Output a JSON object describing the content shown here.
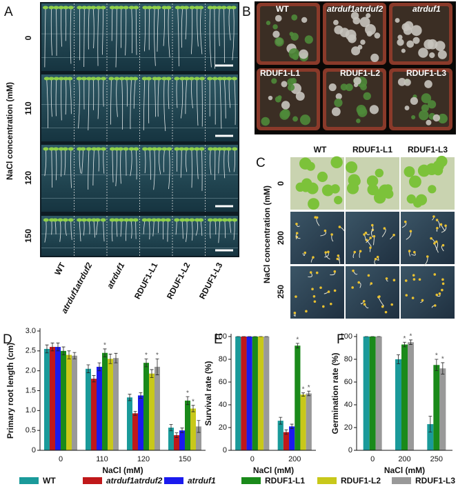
{
  "panels": {
    "A": {
      "label": "A",
      "y_label": "NaCl concentration (mM)",
      "rows": [
        "0",
        "110",
        "120",
        "150"
      ],
      "columns": [
        "WT",
        "atrduf1atrduf2",
        "atrduf1",
        "RDUF1-L1",
        "RDUF1-L2",
        "RDUF1-L3"
      ]
    },
    "B": {
      "label": "B",
      "pots": [
        "WT",
        "atrduf1atrduf2",
        "atrduf1",
        "RDUF1-L1",
        "RDUF1-L2",
        "RDUF1-L3"
      ]
    },
    "C": {
      "label": "C",
      "y_label": "NaCl concentration (mM)",
      "rows": [
        "0",
        "200",
        "250"
      ],
      "columns": [
        "WT",
        "RDUF1-L1",
        "RDUF1-L3"
      ]
    }
  },
  "chart_data": [
    {
      "type": "bar",
      "panel_label": "D",
      "y_label": "Primary root length (cm)",
      "x_label": "NaCl (mM)",
      "categories": [
        "0",
        "110",
        "120",
        "150"
      ],
      "ylim": [
        0,
        3
      ],
      "yticks": [
        0,
        0.5,
        {
          "value": 1,
          "label": "1.0"
        },
        1.5,
        {
          "value": 2,
          "label": "2.0"
        },
        2.5,
        {
          "value": 3,
          "label": "3.0"
        }
      ],
      "series": [
        {
          "name": "WT",
          "color": "#1a9a9a",
          "italic": false,
          "values": [
            2.55,
            2.05,
            1.33,
            0.57
          ],
          "errors": [
            0.1,
            0.1,
            0.08,
            0.08
          ],
          "significance": [
            null,
            null,
            null,
            null
          ]
        },
        {
          "name": "atrduf1atrduf2",
          "color": "#c0181a",
          "italic": true,
          "values": [
            2.6,
            1.8,
            0.93,
            0.38
          ],
          "errors": [
            0.1,
            0.08,
            0.05,
            0.06
          ],
          "significance": [
            null,
            null,
            null,
            null
          ]
        },
        {
          "name": "atrduf1",
          "color": "#1a1aee",
          "italic": true,
          "values": [
            2.6,
            2.1,
            1.38,
            0.5
          ],
          "errors": [
            0.1,
            0.1,
            0.07,
            0.06
          ],
          "significance": [
            null,
            null,
            null,
            null
          ]
        },
        {
          "name": "RDUF1-L1",
          "color": "#1a8a1a",
          "italic": false,
          "values": [
            2.5,
            2.45,
            2.2,
            1.25
          ],
          "errors": [
            0.1,
            0.1,
            0.1,
            0.1
          ],
          "significance": [
            null,
            "*",
            "*",
            "*"
          ]
        },
        {
          "name": "RDUF1-L2",
          "color": "#c8c81a",
          "italic": false,
          "values": [
            2.4,
            2.3,
            1.93,
            1.05
          ],
          "errors": [
            0.1,
            0.12,
            0.1,
            0.08
          ],
          "significance": [
            null,
            null,
            null,
            "*"
          ]
        },
        {
          "name": "RDUF1-L3",
          "color": "#999999",
          "italic": false,
          "values": [
            2.38,
            2.32,
            2.1,
            0.6
          ],
          "errors": [
            0.08,
            0.12,
            0.2,
            0.15
          ],
          "significance": [
            null,
            null,
            "*",
            null
          ]
        }
      ]
    },
    {
      "type": "bar",
      "panel_label": "E",
      "y_label": "Survival rate (%)",
      "x_label": "NaCl (mM)",
      "categories": [
        "0",
        "200"
      ],
      "ylim": [
        0,
        100
      ],
      "yticks": [
        0,
        20,
        40,
        60,
        80,
        100
      ],
      "series": [
        {
          "name": "WT",
          "color": "#1a9a9a",
          "values": [
            100,
            26
          ],
          "errors": [
            0,
            3
          ],
          "significance": [
            null,
            null
          ]
        },
        {
          "name": "atrduf1atrduf2",
          "color": "#c0181a",
          "values": [
            100,
            16
          ],
          "errors": [
            0,
            2
          ],
          "significance": [
            null,
            null
          ]
        },
        {
          "name": "atrduf1",
          "color": "#1a1aee",
          "values": [
            100,
            21
          ],
          "errors": [
            0,
            2
          ],
          "significance": [
            null,
            null
          ]
        },
        {
          "name": "RDUF1-L1",
          "color": "#1a8a1a",
          "values": [
            100,
            92
          ],
          "errors": [
            0,
            2
          ],
          "significance": [
            null,
            "*"
          ]
        },
        {
          "name": "RDUF1-L2",
          "color": "#c8c81a",
          "values": [
            100,
            49
          ],
          "errors": [
            0,
            1.5
          ],
          "significance": [
            null,
            "*"
          ]
        },
        {
          "name": "RDUF1-L3",
          "color": "#999999",
          "values": [
            100,
            50
          ],
          "errors": [
            0,
            2
          ],
          "significance": [
            null,
            "*"
          ]
        }
      ]
    },
    {
      "type": "bar",
      "panel_label": "F",
      "y_label": "Germination rate (%)",
      "x_label": "NaCl (mM)",
      "categories": [
        "0",
        "200",
        "250"
      ],
      "ylim": [
        0,
        100
      ],
      "yticks": [
        0,
        20,
        40,
        60,
        80,
        100
      ],
      "series": [
        {
          "name": "WT",
          "color": "#1a9a9a",
          "values": [
            100,
            80,
            23
          ],
          "errors": [
            0,
            4,
            7
          ],
          "significance": [
            null,
            null,
            null
          ]
        },
        {
          "name": "RDUF1-L1",
          "color": "#1a8a1a",
          "values": [
            100,
            93,
            75
          ],
          "errors": [
            0,
            2,
            5
          ],
          "significance": [
            null,
            "*",
            "*"
          ]
        },
        {
          "name": "RDUF1-L3",
          "color": "#999999",
          "values": [
            100,
            95,
            72
          ],
          "errors": [
            0,
            2,
            5
          ],
          "significance": [
            null,
            "*",
            "*"
          ]
        }
      ]
    }
  ]
}
